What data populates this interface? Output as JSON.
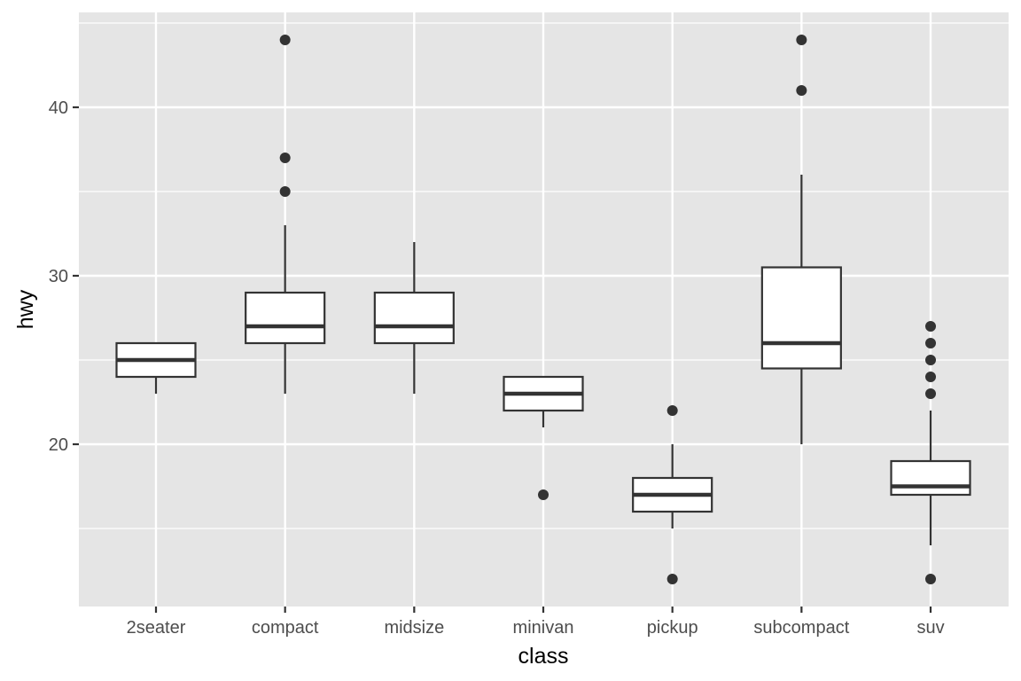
{
  "chart_data": {
    "type": "boxplot",
    "title": "",
    "xlabel": "class",
    "ylabel": "hwy",
    "categories": [
      "2seater",
      "compact",
      "midsize",
      "minivan",
      "pickup",
      "subcompact",
      "suv"
    ],
    "boxes": [
      {
        "category": "2seater",
        "whisker_low": 23,
        "q1": 24,
        "median": 25,
        "q3": 26,
        "whisker_high": 26,
        "outliers": []
      },
      {
        "category": "compact",
        "whisker_low": 23,
        "q1": 26,
        "median": 27,
        "q3": 29,
        "whisker_high": 33,
        "outliers": [
          35,
          37,
          44
        ]
      },
      {
        "category": "midsize",
        "whisker_low": 23,
        "q1": 26,
        "median": 27,
        "q3": 29,
        "whisker_high": 32,
        "outliers": []
      },
      {
        "category": "minivan",
        "whisker_low": 21,
        "q1": 22,
        "median": 23,
        "q3": 24,
        "whisker_high": 24,
        "outliers": [
          17
        ]
      },
      {
        "category": "pickup",
        "whisker_low": 15,
        "q1": 16,
        "median": 17,
        "q3": 18,
        "whisker_high": 20,
        "outliers": [
          12,
          22
        ]
      },
      {
        "category": "subcompact",
        "whisker_low": 20,
        "q1": 24.5,
        "median": 26,
        "q3": 30.5,
        "whisker_high": 36,
        "outliers": [
          41,
          44
        ]
      },
      {
        "category": "suv",
        "whisker_low": 14,
        "q1": 17,
        "median": 17.5,
        "q3": 19,
        "whisker_high": 22,
        "outliers": [
          12,
          23,
          24,
          25,
          26,
          27
        ]
      }
    ],
    "y_ticks": [
      20,
      30,
      40
    ],
    "y_minor_ticks": [
      15,
      25,
      35,
      45
    ],
    "ylim": [
      10.4,
      45.6
    ],
    "grid": true,
    "legend": "none",
    "colors": {
      "panel_background": "#e5e5e5",
      "grid": "#ffffff",
      "box_fill": "#ffffff",
      "box_line": "#333333",
      "outlier": "#333333",
      "tick_text": "#4d4d4d",
      "axis_title": "#000000"
    }
  }
}
